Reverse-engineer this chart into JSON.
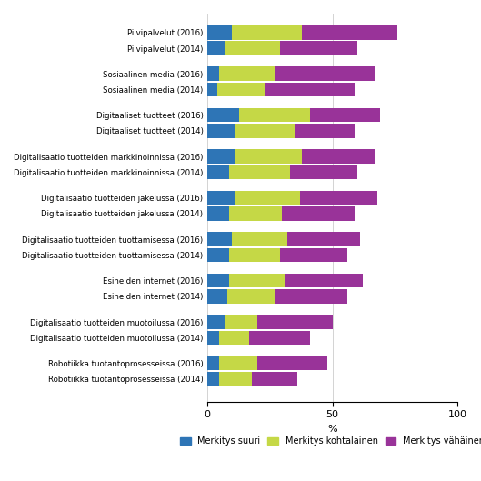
{
  "categories": [
    "Pilvipalvelut (2016)",
    "Pilvipalvelut (2014)",
    "Sosiaalinen media (2016)",
    "Sosiaalinen media (2014)",
    "Digitaaliset tuotteet (2016)",
    "Digitaaliset tuotteet (2014)",
    "Digitalisaatio tuotteiden markkinoinnissa (2016)",
    "Digitalisaatio tuotteiden markkinoinnissa (2014)",
    "Digitalisaatio tuotteiden jakelussa (2016)",
    "Digitalisaatio tuotteiden jakelussa (2014)",
    "Digitalisaatio tuotteiden tuottamisessa (2016)",
    "Digitalisaatio tuotteiden tuottamisessa (2014)",
    "Esineiden internet (2016)",
    "Esineiden internet (2014)",
    "Digitalisaatio tuotteiden muotoilussa (2016)",
    "Digitalisaatio tuotteiden muotoilussa (2014)",
    "Robotiikka tuotantoprosesseissa (2016)",
    "Robotiikka tuotantoprosesseissa (2014)"
  ],
  "suuri": [
    10,
    7,
    5,
    4,
    13,
    11,
    11,
    9,
    11,
    9,
    10,
    9,
    9,
    8,
    7,
    5,
    5,
    5
  ],
  "kohtalainen": [
    28,
    22,
    22,
    19,
    28,
    24,
    27,
    24,
    26,
    21,
    22,
    20,
    22,
    19,
    13,
    12,
    15,
    13
  ],
  "vahanen": [
    38,
    31,
    40,
    36,
    28,
    24,
    29,
    27,
    31,
    29,
    29,
    27,
    31,
    29,
    30,
    24,
    28,
    18
  ],
  "color_suuri": "#2E75B6",
  "color_kohtalainen": "#C5D846",
  "color_vahanen": "#993399",
  "legend_labels": [
    "Merkitys suuri",
    "Merkitys kohtalainen",
    "Merkitys vähäinen"
  ],
  "xlabel": "%",
  "xlim": [
    0,
    100
  ],
  "xticks": [
    0,
    50,
    100
  ],
  "figsize": [
    5.29,
    5.29
  ],
  "dpi": 100,
  "bar_height": 0.38,
  "group_positions": [
    0,
    0.42,
    1.1,
    1.52,
    2.2,
    2.62,
    3.3,
    3.72,
    4.4,
    4.82,
    5.5,
    5.92,
    6.6,
    7.02,
    7.7,
    8.12,
    8.8,
    9.22
  ]
}
